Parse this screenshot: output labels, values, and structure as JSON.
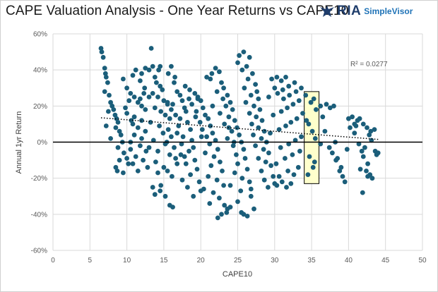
{
  "chart_data": {
    "type": "scatter",
    "title": "CAPE Valuation Analysis - One Year Returns vs CAPE10",
    "xlabel": "CAPE10",
    "ylabel": "Annual 1yr Return",
    "xlim": [
      0,
      50
    ],
    "ylim": [
      -60,
      60
    ],
    "x_ticks": [
      0,
      5,
      10,
      15,
      20,
      25,
      30,
      35,
      40,
      45,
      50
    ],
    "y_ticks": [
      -60,
      -40,
      -20,
      0,
      20,
      40,
      60
    ],
    "x_tick_labels": [
      "0",
      "5",
      "10",
      "15",
      "20",
      "25",
      "30",
      "35",
      "40",
      "45",
      "50"
    ],
    "y_tick_labels": [
      "-60%",
      "-40%",
      "-20%",
      "0%",
      "20%",
      "40%",
      "60%"
    ],
    "grid": true,
    "point_color": "#1b5e7a",
    "trendline": {
      "style": "dotted",
      "x": [
        6.5,
        44
      ],
      "y": [
        13.5,
        1.5
      ]
    },
    "r_squared_label": "R² = 0.0277",
    "highlight_box": {
      "x": [
        34,
        36
      ],
      "y": [
        -23,
        28
      ],
      "fill": "#ffffcc"
    },
    "points": [
      [
        6.5,
        52
      ],
      [
        6.6,
        50
      ],
      [
        6.8,
        47
      ],
      [
        7,
        41
      ],
      [
        7.1,
        38
      ],
      [
        7.2,
        36
      ],
      [
        7.4,
        33
      ],
      [
        7,
        28
      ],
      [
        7.6,
        26
      ],
      [
        7.8,
        22
      ],
      [
        8,
        20
      ],
      [
        8.2,
        18
      ],
      [
        7.5,
        17
      ],
      [
        8.4,
        15
      ],
      [
        8.6,
        13
      ],
      [
        8.8,
        11
      ],
      [
        7.2,
        9
      ],
      [
        8.5,
        8
      ],
      [
        9,
        6
      ],
      [
        9.2,
        4
      ],
      [
        7.8,
        2
      ],
      [
        9.4,
        0
      ],
      [
        8.8,
        -3
      ],
      [
        9.6,
        -6
      ],
      [
        10,
        -9
      ],
      [
        10.2,
        -12
      ],
      [
        8.5,
        -14
      ],
      [
        8.7,
        -16
      ],
      [
        9,
        -10
      ],
      [
        10.5,
        -4
      ],
      [
        9.5,
        35
      ],
      [
        10,
        30
      ],
      [
        10.5,
        27
      ],
      [
        11,
        25
      ],
      [
        11.5,
        22
      ],
      [
        12,
        20
      ],
      [
        12.5,
        18
      ],
      [
        10,
        16
      ],
      [
        11,
        14
      ],
      [
        12,
        12
      ],
      [
        10.8,
        10
      ],
      [
        11.5,
        8
      ],
      [
        12.5,
        6
      ],
      [
        11,
        4
      ],
      [
        12,
        2
      ],
      [
        10.5,
        0
      ],
      [
        11.8,
        -2
      ],
      [
        12.6,
        -5
      ],
      [
        11.2,
        -8
      ],
      [
        12.2,
        -10
      ],
      [
        10.8,
        -12
      ],
      [
        12.8,
        -14
      ],
      [
        11.5,
        -16
      ],
      [
        9.5,
        -17
      ],
      [
        13,
        -3
      ],
      [
        11.8,
        24
      ],
      [
        12.3,
        27
      ],
      [
        10.3,
        23
      ],
      [
        9.8,
        19
      ],
      [
        10.6,
        12
      ],
      [
        12,
        38
      ],
      [
        12.5,
        41
      ],
      [
        13,
        40
      ],
      [
        13.3,
        52
      ],
      [
        13.8,
        36
      ],
      [
        14,
        33
      ],
      [
        14.5,
        31
      ],
      [
        14.8,
        29
      ],
      [
        13.5,
        27
      ],
      [
        14.2,
        25
      ],
      [
        15,
        23
      ],
      [
        15.5,
        21
      ],
      [
        13.8,
        19
      ],
      [
        14.6,
        17
      ],
      [
        15.2,
        15
      ],
      [
        15.8,
        13
      ],
      [
        13.2,
        11
      ],
      [
        14.4,
        9
      ],
      [
        15.6,
        7
      ],
      [
        14.9,
        5
      ],
      [
        16,
        3
      ],
      [
        13.6,
        1
      ],
      [
        15.2,
        -1
      ],
      [
        16.4,
        -3
      ],
      [
        14.2,
        -5
      ],
      [
        15.8,
        -7
      ],
      [
        16.6,
        -9
      ],
      [
        13.9,
        -11
      ],
      [
        15,
        -14
      ],
      [
        14.2,
        -17
      ],
      [
        13.5,
        -25
      ],
      [
        13.8,
        -29
      ],
      [
        14.5,
        -27
      ],
      [
        15.2,
        -30
      ],
      [
        15.8,
        -35
      ],
      [
        16.2,
        -36
      ],
      [
        14.6,
        -24
      ],
      [
        16.1,
        -19
      ],
      [
        15.5,
        -16
      ],
      [
        16.8,
        -12
      ],
      [
        13.5,
        42
      ],
      [
        14.3,
        40
      ],
      [
        15.6,
        38
      ],
      [
        16.5,
        36
      ],
      [
        16.8,
        28
      ],
      [
        17.2,
        26
      ],
      [
        17.5,
        23
      ],
      [
        16.2,
        21
      ],
      [
        17.8,
        19
      ],
      [
        18,
        17
      ],
      [
        16.6,
        15
      ],
      [
        17.2,
        13
      ],
      [
        18.2,
        11
      ],
      [
        17,
        9
      ],
      [
        18.6,
        7
      ],
      [
        16.8,
        5
      ],
      [
        17.6,
        3
      ],
      [
        18.8,
        1
      ],
      [
        17.4,
        -1
      ],
      [
        19,
        -3
      ],
      [
        18.4,
        -5
      ],
      [
        17.8,
        -8
      ],
      [
        19.2,
        -10
      ],
      [
        18,
        -12
      ],
      [
        19.5,
        -15
      ],
      [
        18.6,
        -18
      ],
      [
        17.5,
        -21
      ],
      [
        19.8,
        -22
      ],
      [
        18.2,
        -25
      ],
      [
        20,
        -27
      ],
      [
        19,
        -30
      ],
      [
        16.4,
        33
      ],
      [
        17.9,
        31
      ],
      [
        18.5,
        29
      ],
      [
        19.2,
        27
      ],
      [
        19.6,
        25
      ],
      [
        20,
        23
      ],
      [
        18.8,
        21
      ],
      [
        20.3,
        19
      ],
      [
        19.4,
        17
      ],
      [
        20.6,
        15
      ],
      [
        21,
        13
      ],
      [
        19.9,
        11
      ],
      [
        21.3,
        9
      ],
      [
        20.2,
        7
      ],
      [
        21.6,
        5
      ],
      [
        20.8,
        3
      ],
      [
        22,
        1
      ],
      [
        21.2,
        -1
      ],
      [
        22.3,
        -4
      ],
      [
        20.6,
        -6
      ],
      [
        21.8,
        -8
      ],
      [
        22.6,
        -11
      ],
      [
        21.4,
        -13
      ],
      [
        22.9,
        -16
      ],
      [
        21,
        -19
      ],
      [
        22.2,
        -21
      ],
      [
        23.1,
        -24
      ],
      [
        20.4,
        -26
      ],
      [
        21.7,
        -28
      ],
      [
        22.5,
        -31
      ],
      [
        23.2,
        -35
      ],
      [
        23.6,
        -37
      ],
      [
        22.8,
        -40
      ],
      [
        22.3,
        -42
      ],
      [
        24,
        -36
      ],
      [
        23.5,
        -39
      ],
      [
        21.2,
        -34
      ],
      [
        20.8,
        36
      ],
      [
        21.5,
        38
      ],
      [
        22,
        41
      ],
      [
        22.5,
        39
      ],
      [
        21.3,
        35
      ],
      [
        22.8,
        33
      ],
      [
        23.1,
        30
      ],
      [
        22.2,
        28
      ],
      [
        23.6,
        26
      ],
      [
        23,
        24
      ],
      [
        24,
        22
      ],
      [
        23.4,
        20
      ],
      [
        24.3,
        18
      ],
      [
        22.6,
        16
      ],
      [
        23.8,
        14
      ],
      [
        24.6,
        12
      ],
      [
        23.2,
        10
      ],
      [
        24.9,
        8
      ],
      [
        24.2,
        6
      ],
      [
        25.2,
        4
      ],
      [
        23.6,
        2
      ],
      [
        25.5,
        0
      ],
      [
        24.4,
        -2
      ],
      [
        25.8,
        -4
      ],
      [
        24.8,
        -7
      ],
      [
        26,
        -9
      ],
      [
        25,
        -12
      ],
      [
        26.3,
        -15
      ],
      [
        24.6,
        -17
      ],
      [
        25.6,
        -20
      ],
      [
        26.6,
        -22
      ],
      [
        24,
        -24
      ],
      [
        25.4,
        -27
      ],
      [
        26.8,
        -30
      ],
      [
        27.2,
        -37
      ],
      [
        25.5,
        -39
      ],
      [
        25.8,
        -40
      ],
      [
        26.3,
        -41
      ],
      [
        25,
        -33
      ],
      [
        26.8,
        -26
      ],
      [
        25.2,
        48
      ],
      [
        25.8,
        50
      ],
      [
        26.6,
        47
      ],
      [
        25,
        44
      ],
      [
        26.2,
        42
      ],
      [
        25.6,
        40
      ],
      [
        27,
        38
      ],
      [
        26.4,
        35
      ],
      [
        27.4,
        32
      ],
      [
        25.9,
        30
      ],
      [
        27.6,
        28
      ],
      [
        26.8,
        26
      ],
      [
        27.8,
        24
      ],
      [
        26.1,
        22
      ],
      [
        27.2,
        20
      ],
      [
        28,
        18
      ],
      [
        26.6,
        16
      ],
      [
        27.5,
        14
      ],
      [
        28.3,
        12
      ],
      [
        26.9,
        10
      ],
      [
        27.8,
        8
      ],
      [
        28.6,
        6
      ],
      [
        27.1,
        4
      ],
      [
        28.2,
        2
      ],
      [
        28.9,
        0
      ],
      [
        27.4,
        -2
      ],
      [
        28.5,
        -4
      ],
      [
        29.2,
        -6
      ],
      [
        27.8,
        -9
      ],
      [
        28.8,
        -11
      ],
      [
        29.5,
        -13
      ],
      [
        28.2,
        -16
      ],
      [
        29.8,
        -19
      ],
      [
        28.6,
        -21
      ],
      [
        30,
        -23
      ],
      [
        29.1,
        -25
      ],
      [
        30.3,
        -24
      ],
      [
        31,
        -22
      ],
      [
        31.6,
        -25
      ],
      [
        32.2,
        -23
      ],
      [
        30.6,
        -19
      ],
      [
        31.8,
        -16
      ],
      [
        32.6,
        -18
      ],
      [
        33.2,
        -14
      ],
      [
        30.2,
        -12
      ],
      [
        31.4,
        -9
      ],
      [
        32.4,
        -7
      ],
      [
        33.4,
        -5
      ],
      [
        30.8,
        -3
      ],
      [
        31.9,
        -1
      ],
      [
        32.8,
        1
      ],
      [
        33.6,
        3
      ],
      [
        29.4,
        5
      ],
      [
        30.6,
        7
      ],
      [
        31.5,
        9
      ],
      [
        32.2,
        11
      ],
      [
        33,
        13
      ],
      [
        29.8,
        15
      ],
      [
        30.9,
        17
      ],
      [
        31.7,
        19
      ],
      [
        32.5,
        21
      ],
      [
        33.3,
        23
      ],
      [
        29.2,
        25
      ],
      [
        30.4,
        27
      ],
      [
        31.1,
        29
      ],
      [
        31.9,
        31
      ],
      [
        32.7,
        33
      ],
      [
        29.6,
        35
      ],
      [
        30.3,
        36
      ],
      [
        30.9,
        34
      ],
      [
        31.5,
        36
      ],
      [
        30,
        30
      ],
      [
        31.2,
        24
      ],
      [
        32,
        26
      ],
      [
        32.9,
        28
      ],
      [
        33.6,
        30
      ],
      [
        34.2,
        26
      ],
      [
        33.8,
        16
      ],
      [
        34.3,
        12
      ],
      [
        34.9,
        22
      ],
      [
        35.3,
        24
      ],
      [
        35.6,
        18
      ],
      [
        34.6,
        10
      ],
      [
        35.1,
        6
      ],
      [
        34.7,
        -8
      ],
      [
        35.4,
        -11
      ],
      [
        35.2,
        -14
      ],
      [
        34.5,
        -18
      ],
      [
        35.5,
        2
      ],
      [
        36.2,
        20
      ],
      [
        37,
        21
      ],
      [
        36.5,
        14
      ],
      [
        37.5,
        19
      ],
      [
        38,
        20
      ],
      [
        36.8,
        6
      ],
      [
        37.4,
        -3
      ],
      [
        38.2,
        0
      ],
      [
        37.8,
        -6
      ],
      [
        38.5,
        -9
      ],
      [
        39,
        -14
      ],
      [
        38.8,
        -16
      ],
      [
        39.5,
        -22
      ],
      [
        39.2,
        -19
      ],
      [
        38.3,
        -10
      ],
      [
        36.2,
        -1
      ],
      [
        40,
        13
      ],
      [
        40.5,
        14
      ],
      [
        40.8,
        10
      ],
      [
        41.2,
        12
      ],
      [
        41.5,
        13
      ],
      [
        41,
        9
      ],
      [
        42,
        10
      ],
      [
        42.5,
        8
      ],
      [
        43,
        6
      ],
      [
        42.8,
        4
      ],
      [
        43.5,
        7
      ],
      [
        41.8,
        -5
      ],
      [
        42,
        -8
      ],
      [
        42.6,
        -12
      ],
      [
        41.6,
        -15
      ],
      [
        42.9,
        -18
      ],
      [
        43.2,
        -20
      ],
      [
        42.4,
        -16
      ],
      [
        41.9,
        -28
      ],
      [
        43.6,
        -5
      ],
      [
        44,
        -6
      ],
      [
        43.1,
        1
      ],
      [
        42.2,
        -3
      ],
      [
        43.8,
        -7
      ],
      [
        40.8,
        5
      ],
      [
        41.4,
        -1
      ],
      [
        42.6,
        -19
      ],
      [
        39.8,
        -4
      ],
      [
        40.2,
        8
      ],
      [
        19.6,
        24
      ],
      [
        18.4,
        24
      ],
      [
        20.1,
        3
      ],
      [
        17.3,
        -7
      ],
      [
        16,
        18
      ],
      [
        15.4,
        0
      ],
      [
        13,
        25
      ],
      [
        12.4,
        30
      ],
      [
        11.8,
        34
      ],
      [
        10.8,
        37
      ],
      [
        11.2,
        40
      ],
      [
        14.5,
        42
      ],
      [
        16,
        42
      ],
      [
        15.5,
        22
      ],
      [
        19.3,
        14
      ],
      [
        21.6,
        20
      ],
      [
        23.8,
        8
      ],
      [
        24.5,
        0
      ]
    ]
  }
}
